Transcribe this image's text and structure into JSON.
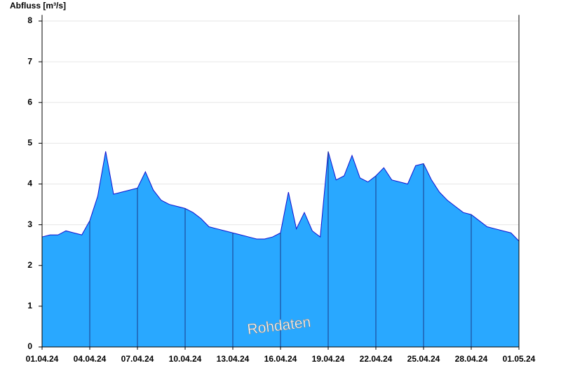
{
  "chart_data": {
    "type": "area",
    "title": "Abfluss [m³/s]",
    "watermark": "Rohdaten",
    "x": [
      0,
      0.5,
      1,
      1.5,
      2,
      2.5,
      3,
      3.5,
      4,
      4.5,
      5,
      5.5,
      6,
      6.5,
      7,
      7.5,
      8,
      8.5,
      9,
      9.5,
      10,
      10.5,
      11,
      11.5,
      12,
      12.5,
      13,
      13.5,
      14,
      14.5,
      15,
      15.5,
      16,
      16.5,
      17,
      17.5,
      18,
      18.5,
      19,
      19.5,
      20,
      20.5,
      21,
      21.5,
      22,
      22.5,
      23,
      23.5,
      24,
      24.5,
      25,
      25.5,
      26,
      26.5,
      27,
      27.5,
      28,
      28.5,
      29,
      29.5,
      30
    ],
    "series": [
      {
        "color": "#29a8ff",
        "line_color": "#1010d0",
        "values": [
          2.7,
          2.75,
          2.75,
          2.85,
          2.8,
          2.75,
          3.1,
          3.7,
          4.8,
          3.75,
          3.8,
          3.85,
          3.9,
          4.3,
          3.85,
          3.6,
          3.5,
          3.45,
          3.4,
          3.3,
          3.15,
          2.95,
          2.9,
          2.85,
          2.8,
          2.75,
          2.7,
          2.65,
          2.65,
          2.7,
          2.8,
          3.8,
          2.9,
          3.3,
          2.85,
          2.7,
          4.8,
          4.1,
          4.2,
          4.7,
          4.15,
          4.05,
          4.2,
          4.4,
          4.1,
          4.05,
          4.0,
          4.45,
          4.5,
          4.1,
          3.8,
          3.6,
          3.45,
          3.3,
          3.25,
          3.1,
          2.95,
          2.9,
          2.85,
          2.8,
          2.6
        ]
      }
    ],
    "xlim": [
      0,
      30
    ],
    "xticks": [
      {
        "value": 0,
        "label": "01.04.24"
      },
      {
        "value": 3,
        "label": "04.04.24"
      },
      {
        "value": 6,
        "label": "07.04.24"
      },
      {
        "value": 9,
        "label": "10.04.24"
      },
      {
        "value": 12,
        "label": "13.04.24"
      },
      {
        "value": 15,
        "label": "16.04.24"
      },
      {
        "value": 18,
        "label": "19.04.24"
      },
      {
        "value": 21,
        "label": "22.04.24"
      },
      {
        "value": 24,
        "label": "25.04.24"
      },
      {
        "value": 27,
        "label": "28.04.24"
      },
      {
        "value": 30,
        "label": "01.05.24"
      }
    ],
    "ylim": [
      0,
      8.15
    ],
    "yticks": [
      0,
      1,
      2,
      3,
      4,
      5,
      6,
      7,
      8
    ],
    "grid": true
  }
}
